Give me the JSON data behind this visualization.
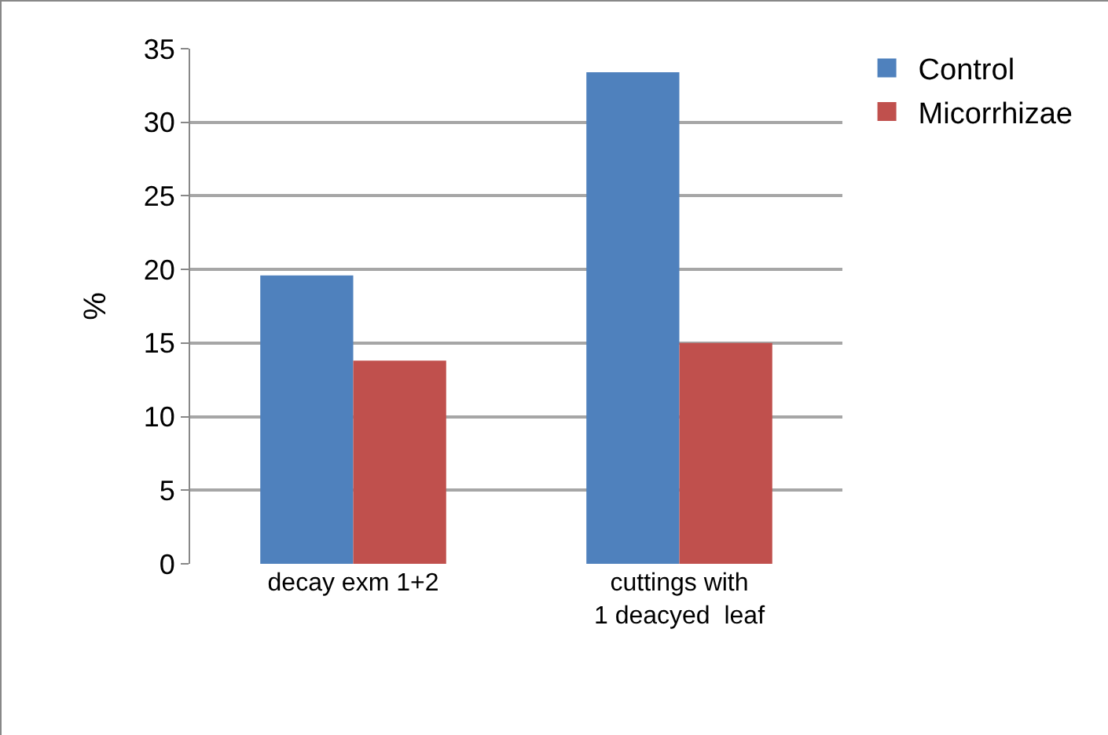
{
  "chart_data": {
    "type": "bar",
    "ylabel": "%",
    "categories": [
      "decay exm 1+2",
      "cuttings with\n1 deacyed  leaf"
    ],
    "series": [
      {
        "name": "Control",
        "color": "#4f81bd",
        "values": [
          19.6,
          33.4
        ]
      },
      {
        "name": "Micorrhizae",
        "color": "#c0504d",
        "values": [
          13.8,
          15.0
        ]
      }
    ],
    "ylim": [
      0,
      35
    ],
    "yticks": [
      0,
      5,
      10,
      15,
      20,
      25,
      30,
      35
    ],
    "grid": "y",
    "legend": "top right"
  }
}
